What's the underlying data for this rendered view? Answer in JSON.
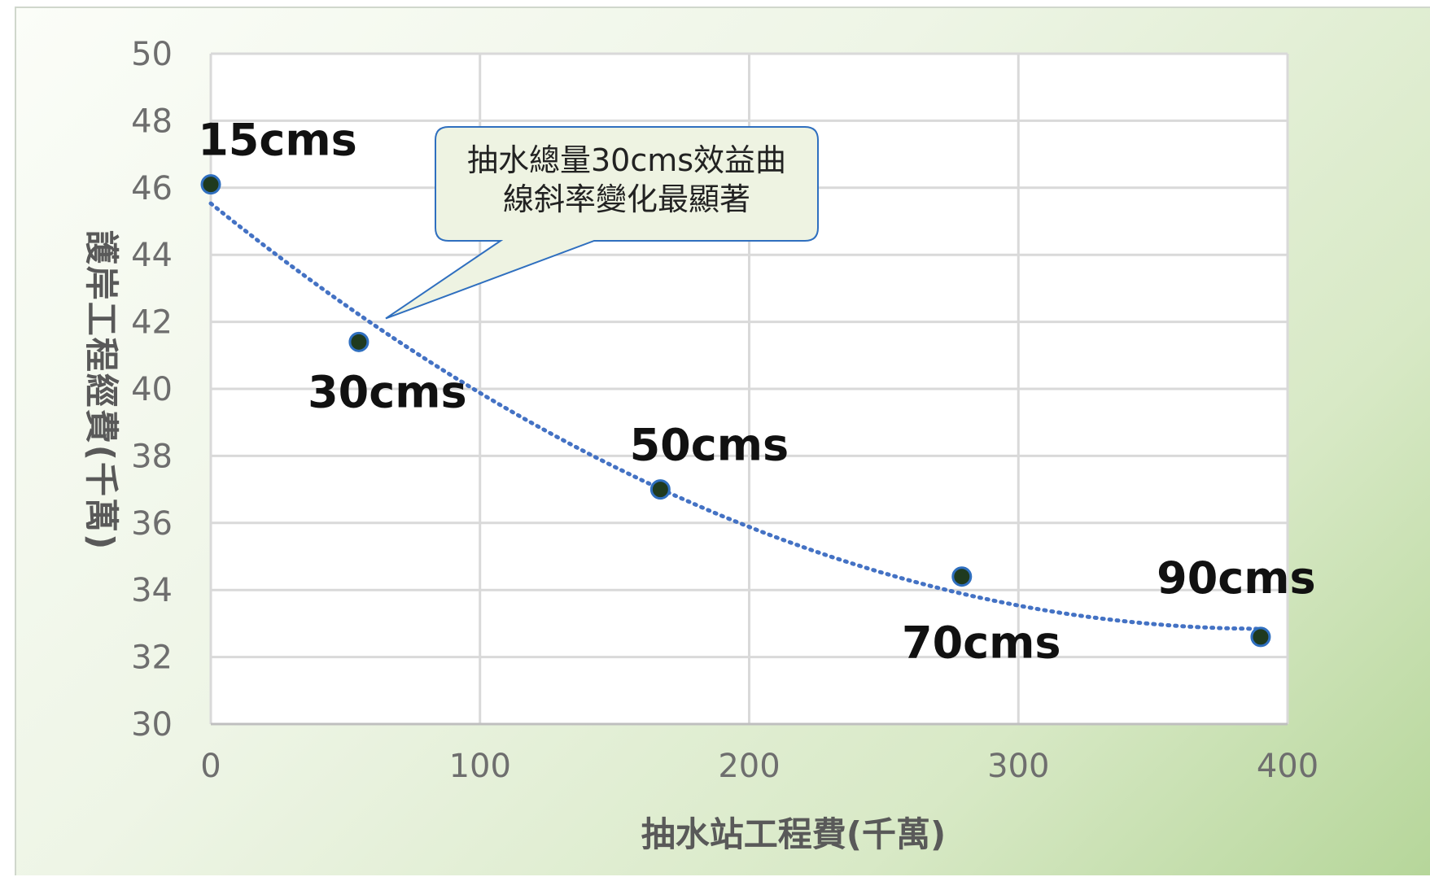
{
  "chart_data": {
    "type": "scatter",
    "title": "",
    "xlabel": "抽水站工程費(千萬)",
    "ylabel": "護岸工程經費(千萬)",
    "xlim": [
      0,
      400
    ],
    "ylim": [
      30,
      50
    ],
    "x_ticks": [
      0,
      100,
      200,
      300,
      400
    ],
    "y_ticks": [
      30,
      32,
      34,
      36,
      38,
      40,
      42,
      44,
      46,
      48,
      50
    ],
    "grid": true,
    "legend": "none",
    "colors": {
      "point": "#1f3a1f",
      "point_edge": "#2f6fbf",
      "trendline": "#4472c4",
      "grid": "#d9d9d9",
      "callout_fill": "#eef3e2",
      "callout_border": "#2f6fbf"
    },
    "series": [
      {
        "points": [
          {
            "x": 0,
            "y": 46.1,
            "label": "15cms"
          },
          {
            "x": 55,
            "y": 41.4,
            "label": "30cms"
          },
          {
            "x": 167,
            "y": 37.0,
            "label": "50cms"
          },
          {
            "x": 279,
            "y": 34.4,
            "label": "70cms"
          },
          {
            "x": 390,
            "y": 32.6,
            "label": "90cms"
          }
        ],
        "trendline": "polynomial-dotted"
      }
    ],
    "annotations": [
      {
        "text_lines": [
          "抽水總量30cms效益曲",
          "線斜率變化最顯著"
        ],
        "points_to": {
          "x": 65,
          "y": 42.1
        }
      }
    ]
  }
}
